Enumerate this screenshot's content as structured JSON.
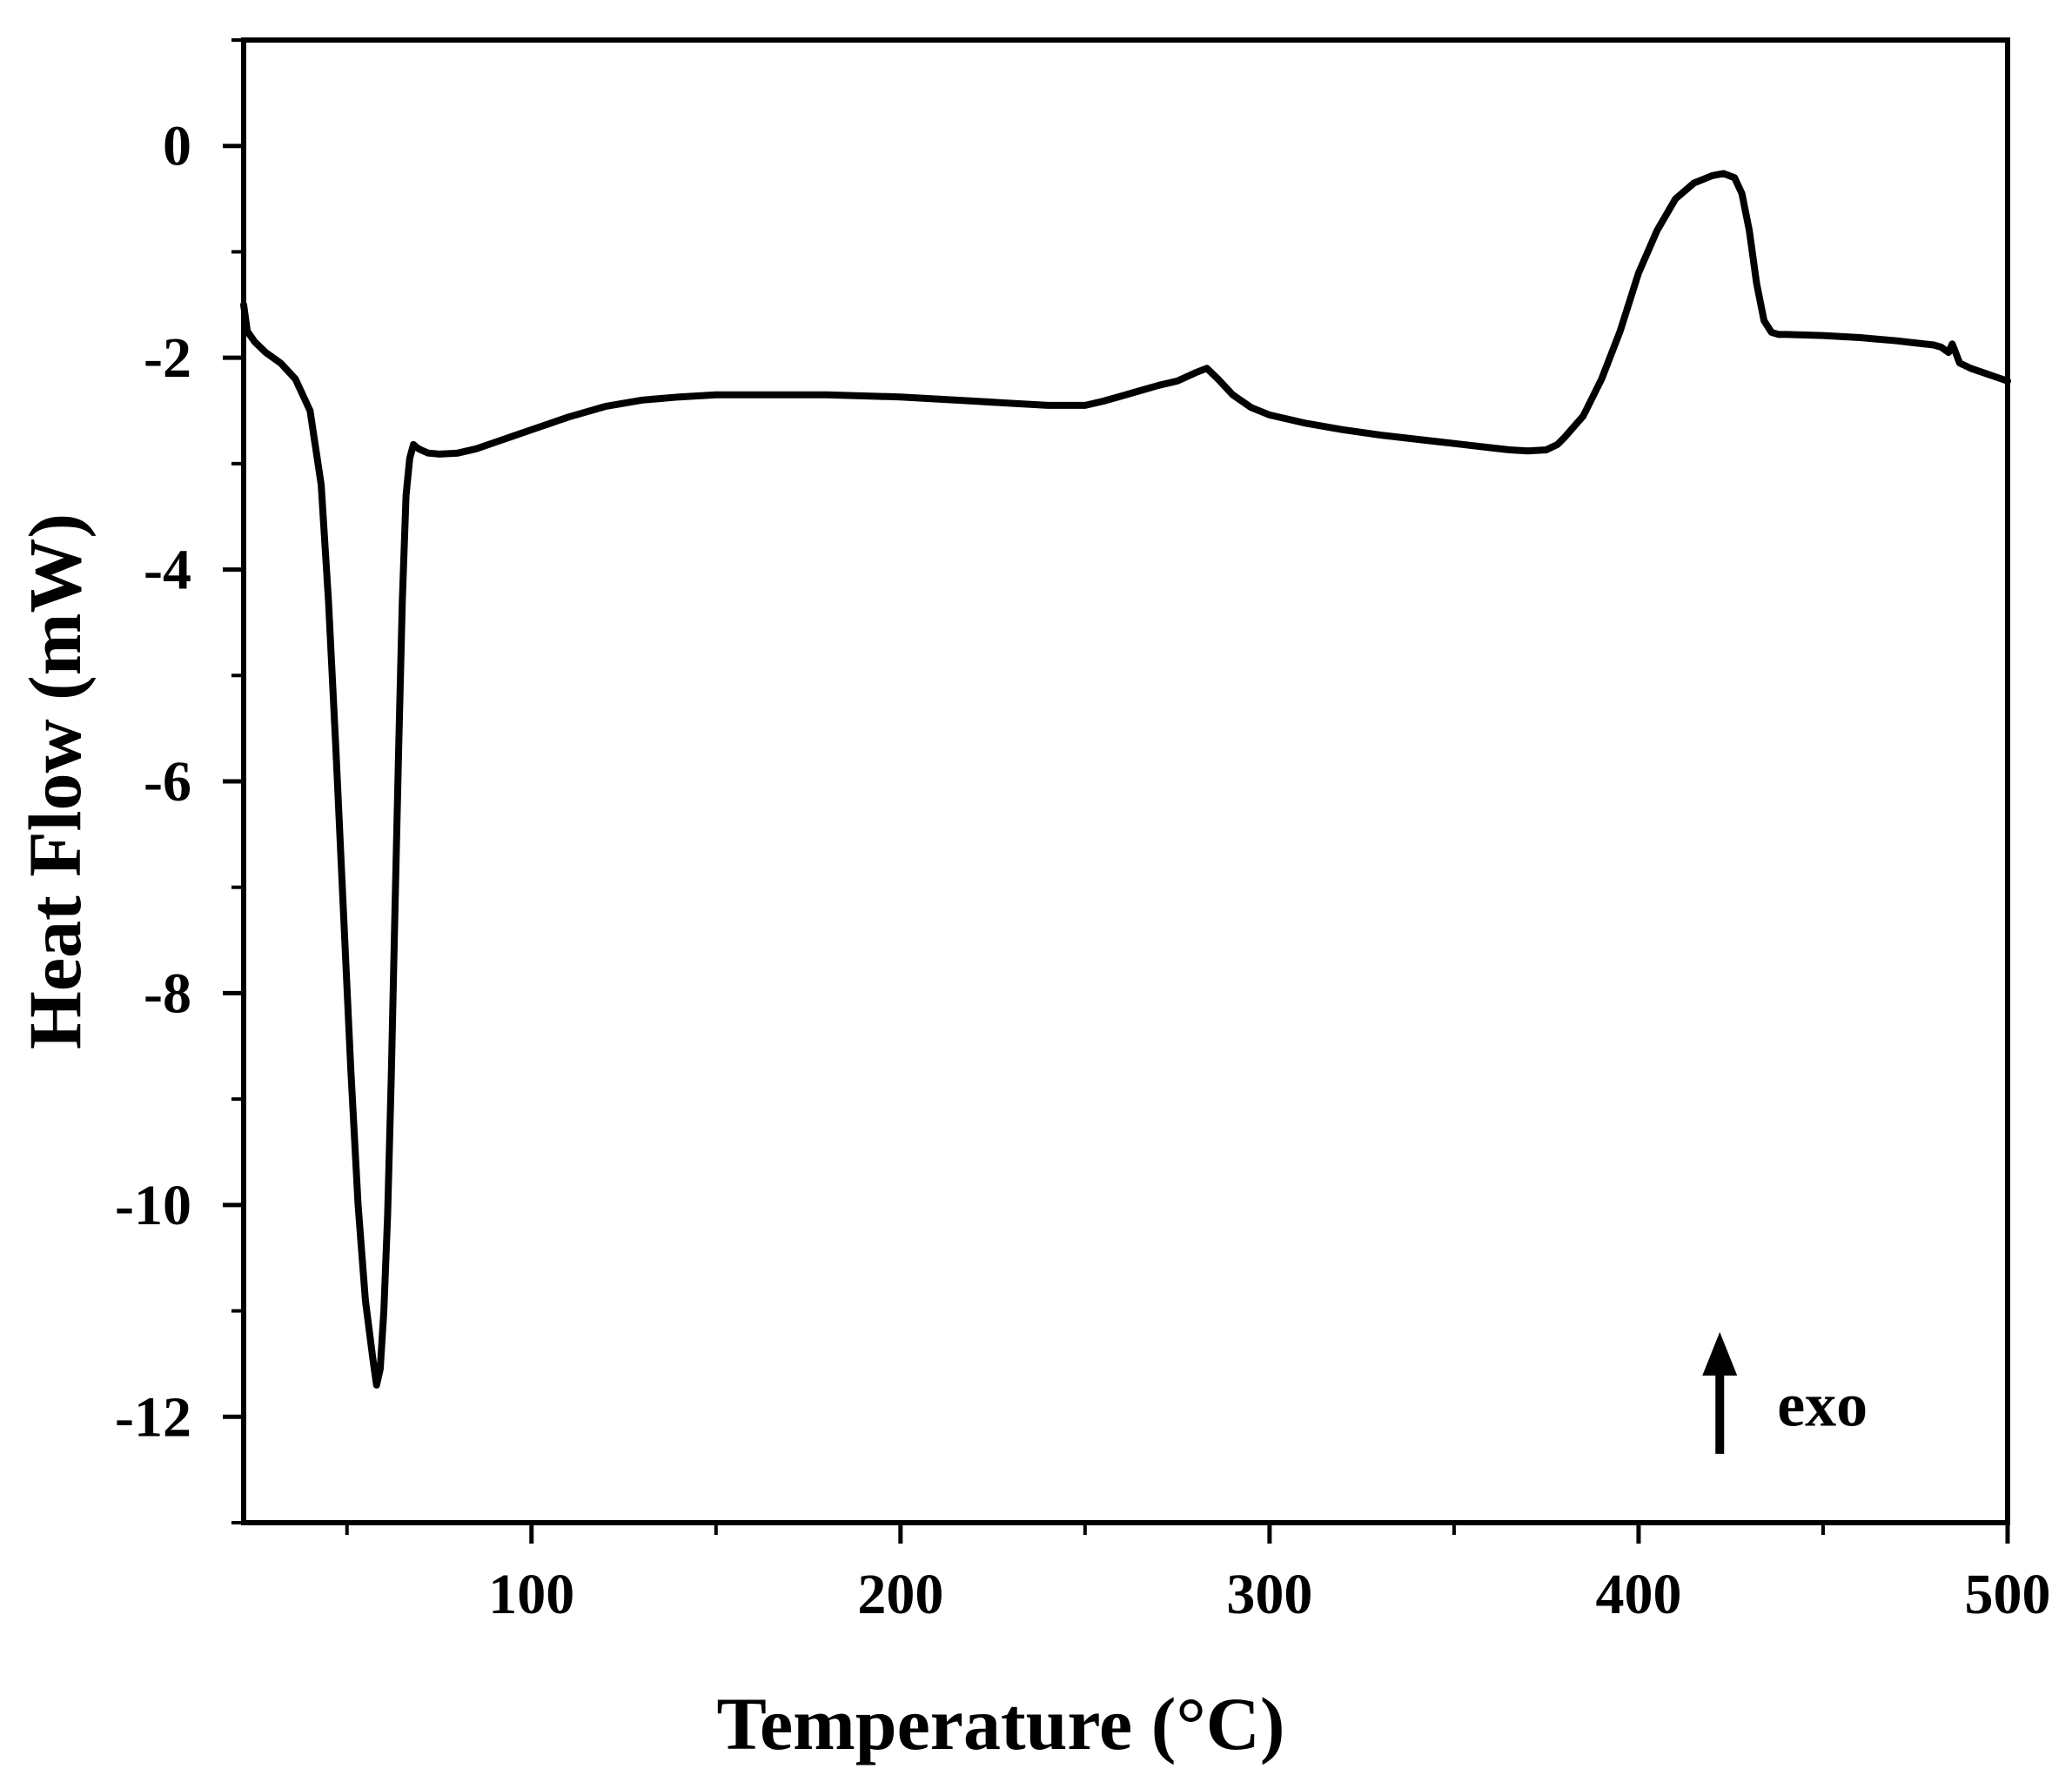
{
  "chart_data": {
    "type": "line",
    "title": "",
    "xlabel": "Temperature (°C)",
    "ylabel": "Heat Flow (mW)",
    "xlim": [
      22,
      500
    ],
    "ylim": [
      -13,
      1
    ],
    "x_ticks": [
      100,
      200,
      300,
      400,
      500
    ],
    "x_tick_labels": [
      "100",
      "200",
      "300",
      "400",
      "500"
    ],
    "x_minor_ticks": [
      50,
      150,
      250,
      350,
      450
    ],
    "y_ticks": [
      0,
      -2,
      -4,
      -6,
      -8,
      -10,
      -12
    ],
    "y_tick_labels": [
      "0",
      "-2",
      "-4",
      "-6",
      "-8",
      "-10",
      "-12"
    ],
    "y_minor_ticks": [
      1,
      -1,
      -3,
      -5,
      -7,
      -9,
      -11,
      -13
    ],
    "grid": false,
    "legend": "none",
    "line_color": "#000000",
    "annotation": {
      "text": "exo",
      "arrow": "up",
      "x": 422,
      "y_from": -12.35,
      "y_to": -11.2
    },
    "series": [
      {
        "x": [
          22,
          23,
          25,
          28,
          32,
          36,
          40,
          43,
          45,
          47,
          49,
          51,
          53,
          55,
          57,
          58,
          59,
          60,
          61,
          62,
          63,
          64,
          65,
          66,
          67,
          68,
          69,
          70,
          72,
          75,
          80,
          85,
          90,
          95,
          100,
          110,
          120,
          130,
          140,
          150,
          160,
          170,
          180,
          190,
          200,
          210,
          220,
          230,
          240,
          250,
          255,
          260,
          265,
          270,
          275,
          280,
          283,
          286,
          290,
          295,
          300,
          310,
          320,
          330,
          340,
          350,
          360,
          365,
          370,
          375,
          378,
          380,
          385,
          390,
          395,
          400,
          405,
          410,
          415,
          420,
          423,
          426,
          428,
          430,
          432,
          434,
          436,
          438,
          440,
          450,
          460,
          470,
          475,
          480,
          482,
          484,
          485,
          487,
          490,
          495,
          500
        ],
        "y": [
          -1.5,
          -1.75,
          -1.85,
          -1.95,
          -2.05,
          -2.2,
          -2.5,
          -3.2,
          -4.3,
          -5.7,
          -7.2,
          -8.7,
          -10.0,
          -10.9,
          -11.45,
          -11.7,
          -11.55,
          -11.0,
          -10.1,
          -8.8,
          -7.2,
          -5.7,
          -4.3,
          -3.3,
          -2.95,
          -2.82,
          -2.85,
          -2.87,
          -2.9,
          -2.91,
          -2.9,
          -2.86,
          -2.8,
          -2.74,
          -2.68,
          -2.56,
          -2.46,
          -2.4,
          -2.37,
          -2.35,
          -2.35,
          -2.35,
          -2.35,
          -2.36,
          -2.37,
          -2.39,
          -2.41,
          -2.43,
          -2.45,
          -2.45,
          -2.41,
          -2.36,
          -2.31,
          -2.26,
          -2.22,
          -2.14,
          -2.1,
          -2.2,
          -2.35,
          -2.47,
          -2.54,
          -2.62,
          -2.68,
          -2.73,
          -2.77,
          -2.81,
          -2.85,
          -2.87,
          -2.88,
          -2.87,
          -2.82,
          -2.75,
          -2.55,
          -2.2,
          -1.75,
          -1.2,
          -0.8,
          -0.5,
          -0.35,
          -0.28,
          -0.26,
          -0.3,
          -0.45,
          -0.8,
          -1.3,
          -1.65,
          -1.76,
          -1.78,
          -1.78,
          -1.79,
          -1.81,
          -1.84,
          -1.86,
          -1.88,
          -1.9,
          -1.95,
          -1.87,
          -2.05,
          -2.1,
          -2.16,
          -2.22
        ]
      }
    ]
  }
}
